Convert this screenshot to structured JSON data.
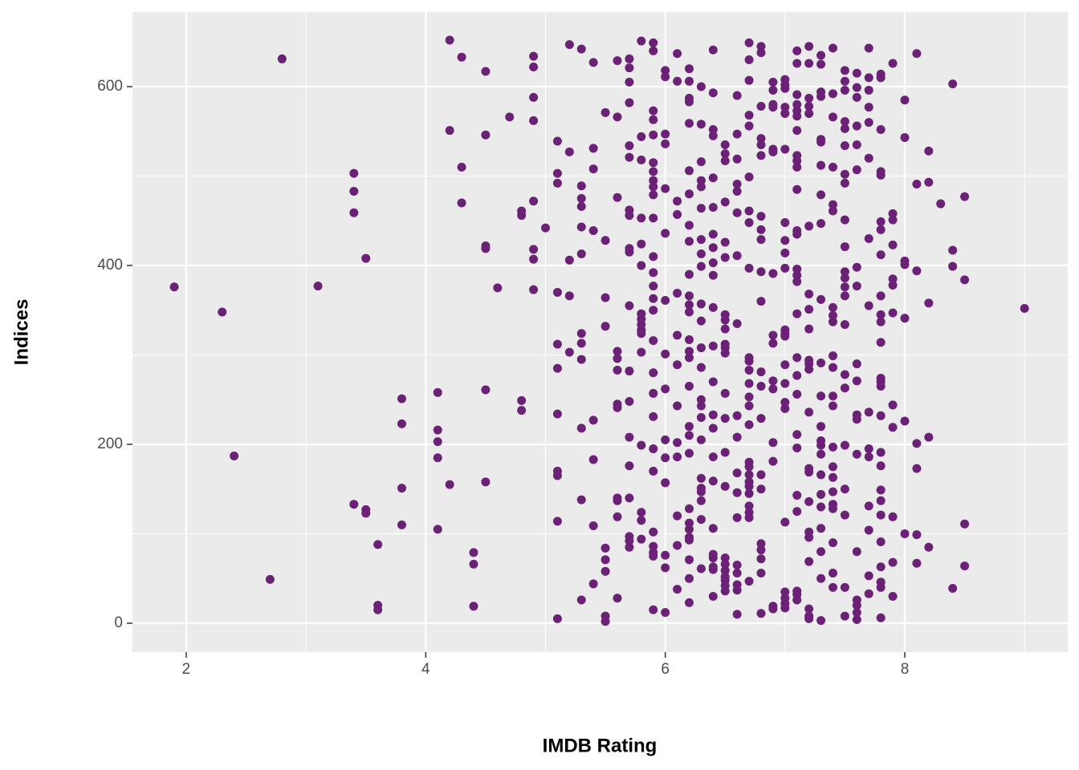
{
  "chart_data": {
    "type": "scatter",
    "x_label": "IMDB Rating",
    "y_label": "Indices",
    "color": "#6a2176",
    "grid": true,
    "xlim": [
      1.551,
      9.361
    ],
    "ylim": [
      -32.3,
      683.4
    ],
    "xticks": [
      2,
      4,
      6,
      8
    ],
    "yticks": [
      0,
      200,
      400,
      600
    ],
    "x_minor_ticks": [
      3,
      5,
      7,
      9
    ],
    "y_minor_ticks": [
      100,
      300,
      500
    ],
    "x": [
      1.9,
      2.3,
      2.4,
      2.7,
      2.8,
      3.1,
      3.4,
      3.4,
      3.4,
      3.5,
      3.4,
      3.5,
      3.5,
      3.6,
      3.6,
      3.6,
      3.8,
      3.8,
      3.8,
      3.8,
      4.1,
      4.1,
      4.1,
      4.1,
      4.1,
      4.2,
      4.2,
      4.2,
      4.3,
      4.3,
      4.3,
      4.4,
      4.4,
      4.4,
      4.5,
      4.5,
      4.5,
      4.5,
      4.5,
      4.5,
      4.6,
      4.7,
      4.8,
      4.8,
      4.8,
      4.8,
      4.9,
      4.9,
      4.9,
      4.9,
      4.9,
      4.9,
      4.9,
      4.9,
      5.0,
      5.1,
      5.1,
      5.1,
      5.1,
      5.1,
      5.1,
      5.1,
      5.1,
      5.1,
      5.1,
      5.1,
      5.2,
      5.2,
      5.2,
      5.2,
      5.2,
      5.3,
      5.3,
      5.3,
      5.3,
      5.3,
      5.3,
      5.3,
      5.3,
      5.3,
      5.3,
      5.3,
      5.3,
      5.4,
      5.4,
      5.4,
      5.4,
      5.4,
      5.4,
      5.4,
      5.4,
      5.5,
      5.5,
      5.5,
      5.5,
      5.5,
      5.5,
      5.5,
      5.5,
      5.5,
      5.6,
      5.6,
      5.6,
      5.6,
      5.6,
      5.6,
      5.6,
      5.6,
      5.6,
      5.6,
      5.6,
      5.6,
      5.7,
      5.7,
      5.7,
      5.7,
      5.7,
      5.7,
      5.7,
      5.7,
      5.7,
      5.7,
      5.7,
      5.7,
      5.7,
      5.7,
      5.7,
      5.7,
      5.7,
      5.7,
      5.7,
      5.8,
      5.8,
      5.8,
      5.8,
      5.8,
      5.8,
      5.8,
      5.8,
      5.8,
      5.8,
      5.8,
      5.8,
      5.8,
      5.8,
      5.8,
      5.8,
      5.9,
      5.9,
      5.9,
      5.9,
      5.9,
      5.9,
      5.9,
      5.9,
      5.9,
      5.9,
      5.9,
      5.9,
      5.9,
      5.9,
      5.9,
      5.9,
      5.9,
      5.9,
      5.9,
      5.9,
      5.9,
      5.9,
      5.9,
      5.9,
      5.9,
      5.9,
      5.9,
      6.0,
      6.0,
      6.0,
      6.0,
      6.0,
      6.0,
      6.0,
      6.0,
      6.0,
      6.0,
      6.0,
      6.0,
      6.0,
      6.0,
      6.0,
      6.1,
      6.1,
      6.1,
      6.1,
      6.1,
      6.1,
      6.1,
      6.1,
      6.1,
      6.1,
      6.1,
      6.1,
      6.1,
      6.2,
      6.2,
      6.2,
      6.2,
      6.2,
      6.2,
      6.2,
      6.2,
      6.2,
      6.2,
      6.2,
      6.2,
      6.2,
      6.2,
      6.2,
      6.2,
      6.2,
      6.2,
      6.2,
      6.2,
      6.2,
      6.2,
      6.2,
      6.2,
      6.2,
      6.2,
      6.2,
      6.2,
      6.3,
      6.3,
      6.3,
      6.3,
      6.3,
      6.3,
      6.3,
      6.3,
      6.3,
      6.3,
      6.3,
      6.3,
      6.3,
      6.3,
      6.3,
      6.3,
      6.3,
      6.3,
      6.3,
      6.3,
      6.3,
      6.3,
      6.3,
      6.4,
      6.4,
      6.4,
      6.4,
      6.4,
      6.4,
      6.4,
      6.4,
      6.4,
      6.4,
      6.4,
      6.4,
      6.4,
      6.4,
      6.4,
      6.4,
      6.4,
      6.4,
      6.4,
      6.4,
      6.4,
      6.4,
      6.4,
      6.5,
      6.5,
      6.5,
      6.5,
      6.5,
      6.5,
      6.5,
      6.5,
      6.5,
      6.5,
      6.5,
      6.5,
      6.5,
      6.5,
      6.5,
      6.5,
      6.5,
      6.5,
      6.5,
      6.5,
      6.5,
      6.5,
      6.5,
      6.6,
      6.6,
      6.6,
      6.6,
      6.6,
      6.6,
      6.6,
      6.6,
      6.6,
      6.6,
      6.6,
      6.6,
      6.6,
      6.6,
      6.6,
      6.6,
      6.6,
      6.6,
      6.7,
      6.7,
      6.7,
      6.7,
      6.7,
      6.7,
      6.7,
      6.7,
      6.7,
      6.7,
      6.7,
      6.7,
      6.7,
      6.7,
      6.7,
      6.7,
      6.7,
      6.7,
      6.7,
      6.7,
      6.7,
      6.7,
      6.7,
      6.7,
      6.7,
      6.7,
      6.8,
      6.8,
      6.8,
      6.8,
      6.8,
      6.8,
      6.8,
      6.8,
      6.8,
      6.8,
      6.8,
      6.8,
      6.8,
      6.8,
      6.8,
      6.8,
      6.8,
      6.8,
      6.8,
      6.8,
      6.8,
      6.9,
      6.9,
      6.9,
      6.9,
      6.9,
      6.9,
      6.9,
      6.9,
      6.9,
      6.9,
      6.9,
      6.9,
      6.9,
      6.9,
      6.9,
      7.0,
      7.0,
      7.0,
      7.0,
      7.0,
      7.0,
      7.0,
      7.0,
      7.0,
      7.0,
      7.0,
      7.0,
      7.0,
      7.0,
      7.0,
      7.0,
      7.0,
      7.0,
      7.0,
      7.0,
      7.0,
      7.0,
      7.1,
      7.1,
      7.1,
      7.1,
      7.1,
      7.1,
      7.1,
      7.1,
      7.1,
      7.1,
      7.1,
      7.1,
      7.1,
      7.1,
      7.1,
      7.1,
      7.1,
      7.1,
      7.1,
      7.1,
      7.1,
      7.1,
      7.1,
      7.1,
      7.1,
      7.1,
      7.1,
      7.2,
      7.2,
      7.2,
      7.2,
      7.2,
      7.2,
      7.2,
      7.2,
      7.2,
      7.2,
      7.2,
      7.2,
      7.2,
      7.2,
      7.2,
      7.2,
      7.2,
      7.2,
      7.2,
      7.2,
      7.2,
      7.2,
      7.3,
      7.3,
      7.3,
      7.3,
      7.3,
      7.3,
      7.3,
      7.3,
      7.3,
      7.3,
      7.3,
      7.3,
      7.3,
      7.3,
      7.3,
      7.3,
      7.3,
      7.3,
      7.3,
      7.3,
      7.3,
      7.3,
      7.3,
      7.4,
      7.4,
      7.4,
      7.4,
      7.4,
      7.4,
      7.4,
      7.4,
      7.4,
      7.4,
      7.4,
      7.4,
      7.4,
      7.4,
      7.4,
      7.4,
      7.4,
      7.4,
      7.4,
      7.4,
      7.4,
      7.4,
      7.5,
      7.5,
      7.5,
      7.5,
      7.5,
      7.5,
      7.5,
      7.5,
      7.5,
      7.5,
      7.5,
      7.5,
      7.5,
      7.5,
      7.5,
      7.5,
      7.5,
      7.5,
      7.5,
      7.5,
      7.5,
      7.5,
      7.6,
      7.6,
      7.6,
      7.6,
      7.6,
      7.6,
      7.6,
      7.6,
      7.6,
      7.6,
      7.6,
      7.6,
      7.6,
      7.6,
      7.6,
      7.6,
      7.6,
      7.6,
      7.7,
      7.7,
      7.7,
      7.7,
      7.7,
      7.7,
      7.7,
      7.7,
      7.7,
      7.7,
      7.7,
      7.7,
      7.7,
      7.7,
      7.7,
      7.8,
      7.8,
      7.8,
      7.8,
      7.8,
      7.8,
      7.8,
      7.8,
      7.8,
      7.8,
      7.8,
      7.8,
      7.8,
      7.8,
      7.8,
      7.8,
      7.8,
      7.8,
      7.8,
      7.8,
      7.8,
      7.8,
      7.8,
      7.8,
      7.8,
      7.8,
      7.9,
      7.9,
      7.9,
      7.9,
      7.9,
      7.9,
      7.9,
      7.9,
      7.9,
      7.9,
      7.9,
      7.9,
      8.0,
      8.0,
      8.0,
      8.0,
      8.0,
      8.0,
      8.0,
      8.1,
      8.1,
      8.1,
      8.1,
      8.1,
      8.1,
      8.1,
      8.2,
      8.2,
      8.2,
      8.2,
      8.2,
      8.3,
      8.4,
      8.4,
      8.4,
      8.4,
      8.5,
      8.5,
      8.5,
      8.5,
      9.0
    ],
    "values": [
      376,
      348,
      187,
      49,
      631,
      377,
      503,
      483,
      459,
      408,
      133,
      127,
      123,
      88,
      20,
      15,
      251,
      223,
      151,
      110,
      258,
      216,
      203,
      185,
      105,
      652,
      551,
      155,
      633,
      510,
      470,
      79,
      66,
      19,
      617,
      546,
      422,
      419,
      261,
      158,
      375,
      566,
      461,
      456,
      249,
      238,
      634,
      622,
      588,
      562,
      472,
      418,
      407,
      373,
      442,
      539,
      503,
      492,
      370,
      312,
      285,
      234,
      170,
      165,
      114,
      5,
      647,
      527,
      406,
      366,
      303,
      642,
      489,
      475,
      466,
      443,
      413,
      324,
      313,
      295,
      218,
      138,
      26,
      627,
      531,
      508,
      439,
      227,
      183,
      109,
      44,
      571,
      428,
      364,
      332,
      84,
      71,
      58,
      8,
      2,
      629,
      566,
      476,
      304,
      296,
      283,
      245,
      241,
      140,
      137,
      119,
      28,
      631,
      621,
      605,
      582,
      534,
      521,
      462,
      456,
      419,
      415,
      355,
      282,
      248,
      208,
      176,
      140,
      97,
      92,
      85,
      651,
      544,
      518,
      453,
      424,
      400,
      346,
      340,
      334,
      328,
      324,
      303,
      199,
      124,
      115,
      94,
      649,
      640,
      573,
      563,
      546,
      515,
      505,
      495,
      488,
      479,
      453,
      410,
      392,
      377,
      363,
      350,
      316,
      280,
      257,
      231,
      195,
      170,
      102,
      86,
      79,
      75,
      15,
      618,
      611,
      547,
      536,
      486,
      436,
      361,
      301,
      262,
      205,
      185,
      157,
      76,
      62,
      12,
      637,
      606,
      472,
      457,
      369,
      322,
      289,
      243,
      202,
      186,
      120,
      87,
      38,
      620,
      606,
      587,
      583,
      559,
      506,
      480,
      445,
      427,
      390,
      366,
      356,
      348,
      317,
      304,
      297,
      265,
      220,
      210,
      190,
      128,
      112,
      105,
      96,
      93,
      71,
      50,
      23,
      600,
      558,
      516,
      495,
      488,
      464,
      429,
      413,
      399,
      357,
      338,
      308,
      286,
      250,
      243,
      230,
      205,
      162,
      151,
      147,
      137,
      116,
      61,
      641,
      593,
      552,
      545,
      498,
      465,
      435,
      420,
      403,
      389,
      353,
      310,
      270,
      233,
      218,
      186,
      159,
      106,
      77,
      73,
      63,
      60,
      30,
      535,
      525,
      517,
      471,
      426,
      409,
      345,
      339,
      329,
      312,
      308,
      302,
      257,
      229,
      191,
      153,
      73,
      66,
      59,
      52,
      48,
      42,
      36,
      590,
      547,
      519,
      491,
      483,
      459,
      411,
      335,
      232,
      208,
      168,
      146,
      118,
      65,
      56,
      43,
      37,
      10,
      649,
      630,
      607,
      568,
      556,
      499,
      461,
      448,
      397,
      297,
      293,
      283,
      268,
      253,
      243,
      222,
      180,
      175,
      166,
      158,
      153,
      145,
      131,
      124,
      118,
      47,
      645,
      638,
      578,
      542,
      535,
      523,
      455,
      440,
      429,
      393,
      360,
      281,
      265,
      229,
      166,
      150,
      89,
      82,
      72,
      56,
      11,
      605,
      596,
      580,
      577,
      530,
      527,
      391,
      322,
      313,
      271,
      262,
      202,
      181,
      19,
      16,
      608,
      602,
      598,
      577,
      570,
      530,
      448,
      428,
      414,
      397,
      328,
      324,
      321,
      289,
      268,
      247,
      240,
      113,
      35,
      28,
      22,
      17,
      640,
      626,
      591,
      580,
      573,
      567,
      551,
      523,
      517,
      510,
      485,
      439,
      435,
      396,
      389,
      382,
      346,
      297,
      277,
      256,
      211,
      196,
      143,
      125,
      36,
      32,
      26,
      645,
      626,
      587,
      578,
      570,
      444,
      368,
      351,
      329,
      294,
      290,
      284,
      236,
      173,
      169,
      136,
      102,
      96,
      69,
      16,
      8,
      5,
      635,
      625,
      594,
      589,
      541,
      538,
      512,
      479,
      447,
      362,
      291,
      254,
      220,
      204,
      199,
      189,
      166,
      144,
      130,
      106,
      80,
      50,
      3,
      643,
      592,
      566,
      510,
      468,
      461,
      353,
      344,
      337,
      299,
      286,
      254,
      243,
      197,
      175,
      163,
      147,
      133,
      128,
      90,
      56,
      40,
      618,
      606,
      596,
      561,
      553,
      534,
      502,
      492,
      451,
      421,
      393,
      386,
      376,
      366,
      334,
      278,
      263,
      199,
      150,
      121,
      40,
      8,
      615,
      599,
      588,
      556,
      535,
      507,
      398,
      377,
      290,
      271,
      233,
      228,
      189,
      80,
      26,
      20,
      12,
      4,
      643,
      610,
      596,
      577,
      560,
      520,
      430,
      355,
      236,
      195,
      186,
      131,
      104,
      53,
      33,
      614,
      610,
      552,
      505,
      501,
      449,
      440,
      412,
      366,
      345,
      337,
      314,
      274,
      270,
      265,
      232,
      191,
      176,
      149,
      137,
      121,
      91,
      63,
      46,
      40,
      6,
      626,
      458,
      451,
      423,
      385,
      378,
      347,
      244,
      219,
      119,
      68,
      30,
      585,
      543,
      405,
      401,
      341,
      226,
      100,
      637,
      491,
      394,
      201,
      173,
      99,
      67,
      528,
      493,
      358,
      208,
      85,
      469,
      603,
      417,
      399,
      39,
      477,
      384,
      111,
      64,
      352
    ]
  }
}
